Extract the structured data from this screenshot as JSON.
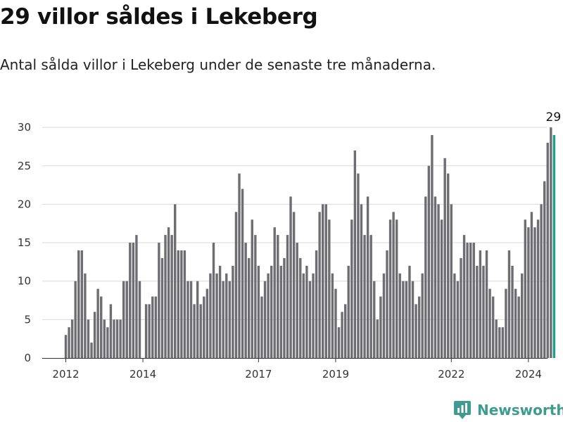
{
  "header": {
    "title": "29 villor såldes i Lekeberg",
    "subtitle": "Antal sålda villor i Lekeberg under de senaste tre månaderna."
  },
  "brand": {
    "name": "Newsworthy",
    "color": "#3e9c8f"
  },
  "chart_data": {
    "type": "bar",
    "y_ticks": [
      0,
      5,
      10,
      15,
      20,
      25,
      30
    ],
    "ylim": [
      0,
      30
    ],
    "x_ticks": [
      {
        "label": "2012",
        "index": 0
      },
      {
        "label": "2014",
        "index": 24
      },
      {
        "label": "2017",
        "index": 60
      },
      {
        "label": "2019",
        "index": 84
      },
      {
        "label": "2022",
        "index": 120
      },
      {
        "label": "2024",
        "index": 144
      }
    ],
    "highlight_label": "29",
    "bar_color": "#6e6d72",
    "highlight_color": "#1f9e8e",
    "values": [
      3,
      4,
      5,
      10,
      14,
      14,
      11,
      5,
      2,
      6,
      9,
      8,
      5,
      4,
      7,
      5,
      5,
      5,
      10,
      10,
      15,
      15,
      16,
      10,
      0,
      7,
      7,
      8,
      8,
      15,
      13,
      16,
      17,
      16,
      20,
      14,
      14,
      14,
      10,
      10,
      7,
      10,
      7,
      8,
      9,
      11,
      15,
      11,
      12,
      10,
      11,
      10,
      12,
      19,
      24,
      22,
      15,
      13,
      18,
      16,
      12,
      8,
      10,
      11,
      12,
      17,
      16,
      12,
      13,
      16,
      21,
      19,
      15,
      13,
      11,
      12,
      10,
      11,
      14,
      19,
      20,
      20,
      18,
      11,
      9,
      4,
      6,
      7,
      12,
      18,
      27,
      24,
      20,
      16,
      21,
      16,
      10,
      5,
      8,
      11,
      14,
      18,
      19,
      18,
      11,
      10,
      10,
      12,
      10,
      7,
      8,
      11,
      21,
      25,
      29,
      21,
      20,
      18,
      26,
      24,
      20,
      11,
      10,
      13,
      16,
      15,
      15,
      15,
      12,
      14,
      12,
      14,
      9,
      8,
      5,
      4,
      4,
      9,
      14,
      12,
      9,
      8,
      11,
      18,
      17,
      19,
      17,
      18,
      20,
      23,
      28,
      30,
      29
    ]
  }
}
